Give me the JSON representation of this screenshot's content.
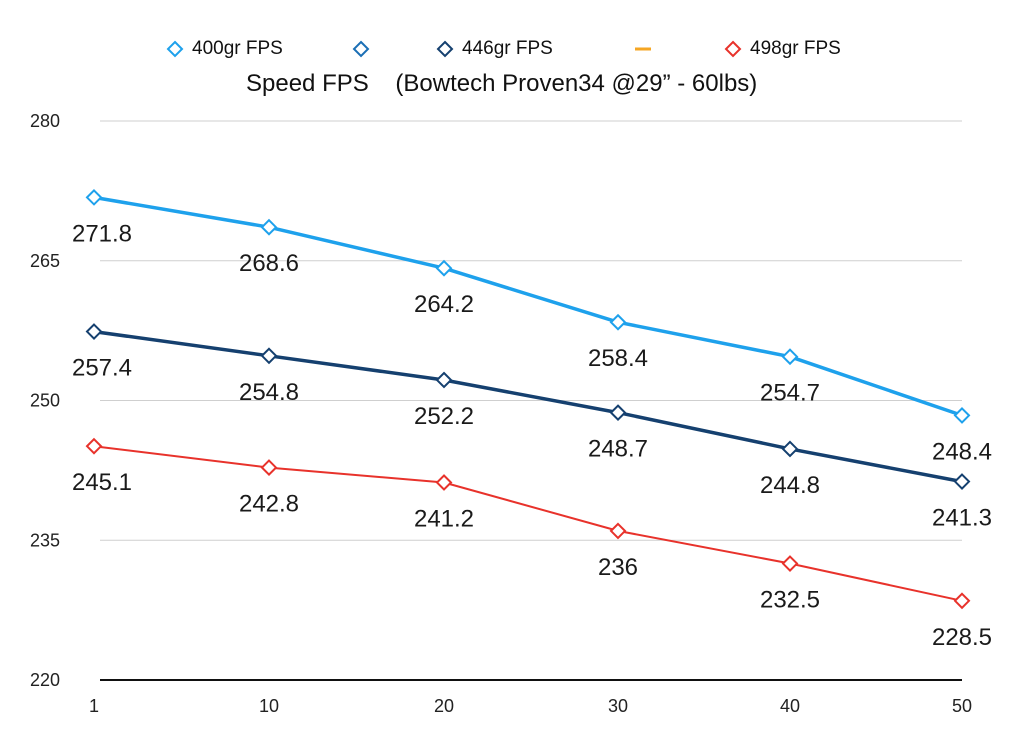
{
  "chart_data": {
    "type": "line",
    "title": "Speed FPS    (Bowtech Proven34 @29” - 60lbs)",
    "xlabel": "",
    "ylabel": "",
    "categories": [
      "1",
      "10",
      "20",
      "30",
      "40",
      "50"
    ],
    "ylim": [
      220,
      280
    ],
    "yticks": [
      "220",
      "235",
      "250",
      "265",
      "280"
    ],
    "grid": true,
    "legend_position": "top",
    "legend": [
      {
        "label": "400gr FPS",
        "color": "#1ea1ec",
        "marker": "diamond"
      },
      {
        "label": "",
        "color": "#1b6fb5",
        "marker": "diamond"
      },
      {
        "label": "446gr FPS",
        "color": "#15406f",
        "marker": "diamond"
      },
      {
        "label": "",
        "color": "#f5a623",
        "marker": "dash"
      },
      {
        "label": "498gr FPS",
        "color": "#e8322b",
        "marker": "diamond"
      }
    ],
    "series": [
      {
        "name": "400gr FPS",
        "color": "#1ea1ec",
        "values": [
          271.8,
          268.6,
          264.2,
          258.4,
          254.7,
          248.4
        ],
        "labels": [
          "271.8",
          "268.6",
          "264.2",
          "258.4",
          "254.7",
          "248.4"
        ]
      },
      {
        "name": "446gr FPS",
        "color": "#15406f",
        "values": [
          257.4,
          254.8,
          252.2,
          248.7,
          244.8,
          241.3
        ],
        "labels": [
          "257.4",
          "254.8",
          "252.2",
          "248.7",
          "244.8",
          "241.3"
        ]
      },
      {
        "name": "498gr FPS",
        "color": "#e8322b",
        "values": [
          245.1,
          242.8,
          241.2,
          236,
          232.5,
          228.5
        ],
        "labels": [
          "245.1",
          "242.8",
          "241.2",
          "236",
          "232.5",
          "228.5"
        ]
      }
    ]
  }
}
